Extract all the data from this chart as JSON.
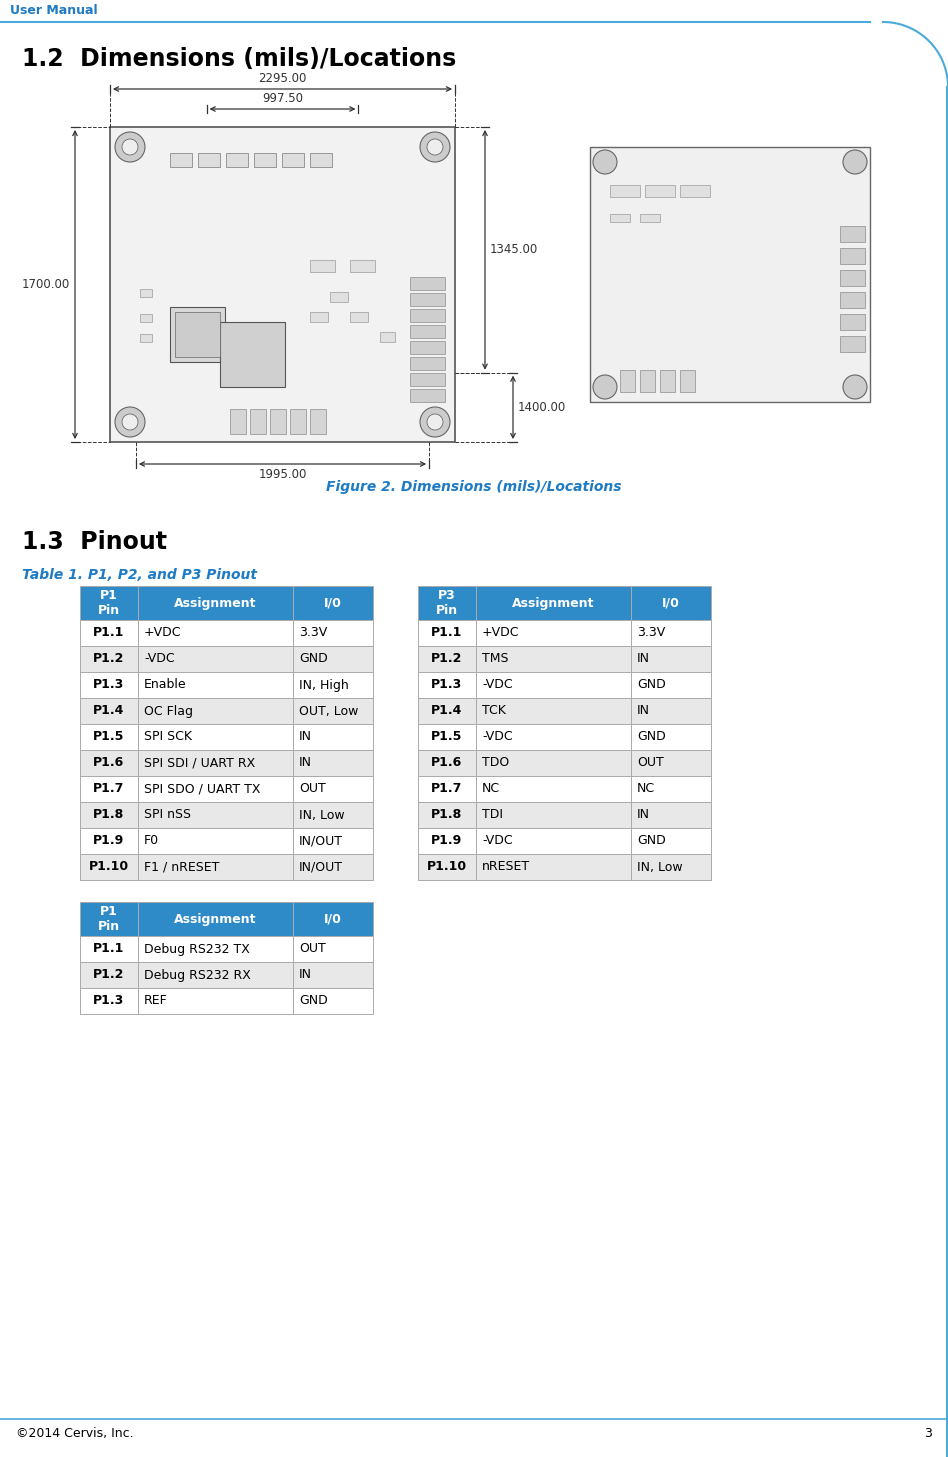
{
  "header_text": "User Manual",
  "header_color": "#1E7BC4",
  "header_line_color": "#4AABDB",
  "section_title": "1.2  Dimensions (mils)/Locations",
  "section_title_fontsize": 17,
  "figure_caption": "Figure 2. Dimensions (mils)/Locations",
  "figure_caption_color": "#1E7BC4",
  "subsection_title": "1.3  Pinout",
  "subsection_title_fontsize": 17,
  "table_title": "Table 1. P1, P2, and P3 Pinout",
  "table_title_color": "#1E7BC4",
  "footer_text": "©2014 Cervis, Inc.",
  "footer_page": "3",
  "footer_line_color": "#4AABDB",
  "bg_color": "#FFFFFF",
  "table_header_bg": "#2E8BC8",
  "table_header_text_color": "#FFFFFF",
  "table_row_alt_bg": "#E8E8E8",
  "table_row_bg": "#FFFFFF",
  "table_border_color": "#AAAAAA",
  "p1_table": {
    "headers": [
      "P1\nPin",
      "Assignment",
      "I/0"
    ],
    "rows": [
      [
        "P1.1",
        "+VDC",
        "3.3V"
      ],
      [
        "P1.2",
        "-VDC",
        "GND"
      ],
      [
        "P1.3",
        "Enable",
        "IN, High"
      ],
      [
        "P1.4",
        "OC Flag",
        "OUT, Low"
      ],
      [
        "P1.5",
        "SPI SCK",
        "IN"
      ],
      [
        "P1.6",
        "SPI SDI / UART RX",
        "IN"
      ],
      [
        "P1.7",
        "SPI SDO / UART TX",
        "OUT"
      ],
      [
        "P1.8",
        "SPI nSS",
        "IN, Low"
      ],
      [
        "P1.9",
        "F0",
        "IN/OUT"
      ],
      [
        "P1.10",
        "F1 / nRESET",
        "IN/OUT"
      ]
    ]
  },
  "p3_table": {
    "headers": [
      "P3\nPin",
      "Assignment",
      "I/0"
    ],
    "rows": [
      [
        "P1.1",
        "+VDC",
        "3.3V"
      ],
      [
        "P1.2",
        "TMS",
        "IN"
      ],
      [
        "P1.3",
        "-VDC",
        "GND"
      ],
      [
        "P1.4",
        "TCK",
        "IN"
      ],
      [
        "P1.5",
        "-VDC",
        "GND"
      ],
      [
        "P1.6",
        "TDO",
        "OUT"
      ],
      [
        "P1.7",
        "NC",
        "NC"
      ],
      [
        "P1.8",
        "TDI",
        "IN"
      ],
      [
        "P1.9",
        "-VDC",
        "GND"
      ],
      [
        "P1.10",
        "nRESET",
        "IN, Low"
      ]
    ]
  },
  "p2_table": {
    "headers": [
      "P1\nPin",
      "Assignment",
      "I/0"
    ],
    "rows": [
      [
        "P1.1",
        "Debug RS232 TX",
        "OUT"
      ],
      [
        "P1.2",
        "Debug RS232 RX",
        "IN"
      ],
      [
        "P1.3",
        "REF",
        "GND"
      ]
    ]
  },
  "dim_labels": [
    "2295.00",
    "997.50",
    "1700.00",
    "1345.00",
    "1400.00",
    "1995.00"
  ]
}
